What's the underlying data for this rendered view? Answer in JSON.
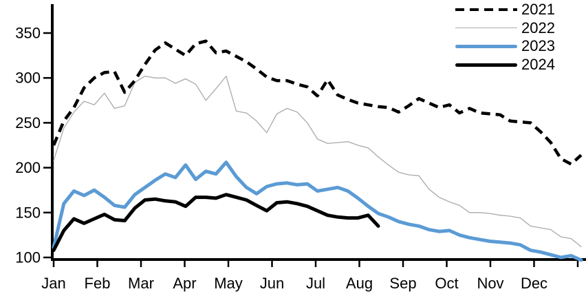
{
  "chart_data": {
    "type": "line",
    "title": "",
    "x_axis": {
      "tick_labels": [
        "Jan",
        "Feb",
        "Mar",
        "Apr",
        "May",
        "Jun",
        "Jul",
        "Aug",
        "Sep",
        "Oct",
        "Nov",
        "Dec"
      ],
      "points_per_year": 53,
      "unit": "weekly"
    },
    "y_axis": {
      "ticks": [
        350,
        300,
        250,
        200,
        150,
        100
      ],
      "min": 100,
      "max": 350
    },
    "grid": false,
    "legend_position": "top-right",
    "series": [
      {
        "name": "2021",
        "color": "#000000",
        "style": "dashed",
        "line_width": 4.5,
        "values": [
          225,
          252,
          267,
          289,
          300,
          306,
          307,
          284,
          297,
          315,
          331,
          339,
          332,
          325,
          338,
          341,
          328,
          330,
          324,
          318,
          310,
          301,
          297,
          297,
          293,
          290,
          280,
          298,
          281,
          276,
          272,
          270,
          268,
          267,
          262,
          269,
          277,
          272,
          267,
          270,
          261,
          266,
          261,
          260,
          259,
          252,
          251,
          250,
          240,
          228,
          210,
          204,
          214
        ]
      },
      {
        "name": "2022",
        "color": "#a9a9a9",
        "style": "solid",
        "line_width": 1.3,
        "values": [
          208,
          244,
          262,
          274,
          270,
          283,
          266,
          269,
          295,
          302,
          300,
          300,
          294,
          299,
          293,
          275,
          288,
          302,
          263,
          261,
          252,
          239,
          260,
          266,
          262,
          250,
          232,
          227,
          228,
          229,
          225,
          222,
          212,
          203,
          195,
          192,
          191,
          176,
          167,
          162,
          158,
          150,
          150,
          149,
          147,
          146,
          144,
          135,
          133,
          131,
          123,
          121,
          112
        ]
      },
      {
        "name": "2023",
        "color": "#5b9bd5",
        "style": "solid",
        "line_width": 5,
        "values": [
          111,
          160,
          174,
          169,
          175,
          167,
          158,
          156,
          170,
          178,
          186,
          193,
          189,
          203,
          187,
          196,
          193,
          206,
          190,
          178,
          171,
          179,
          182,
          183,
          181,
          182,
          174,
          176,
          178,
          174,
          166,
          157,
          149,
          145,
          140,
          137,
          135,
          131,
          129,
          130,
          125,
          122,
          120,
          118,
          117,
          116,
          114,
          108,
          106,
          103,
          100,
          102,
          97
        ]
      },
      {
        "name": "2024",
        "color": "#000000",
        "style": "solid",
        "line_width": 5,
        "values": [
          108,
          130,
          143,
          138,
          143,
          148,
          142,
          141,
          155,
          164,
          165,
          163,
          162,
          157,
          167,
          167,
          166,
          170,
          167,
          164,
          158,
          152,
          161,
          162,
          160,
          157,
          152,
          147,
          145,
          144,
          144,
          147,
          135
        ]
      }
    ]
  }
}
